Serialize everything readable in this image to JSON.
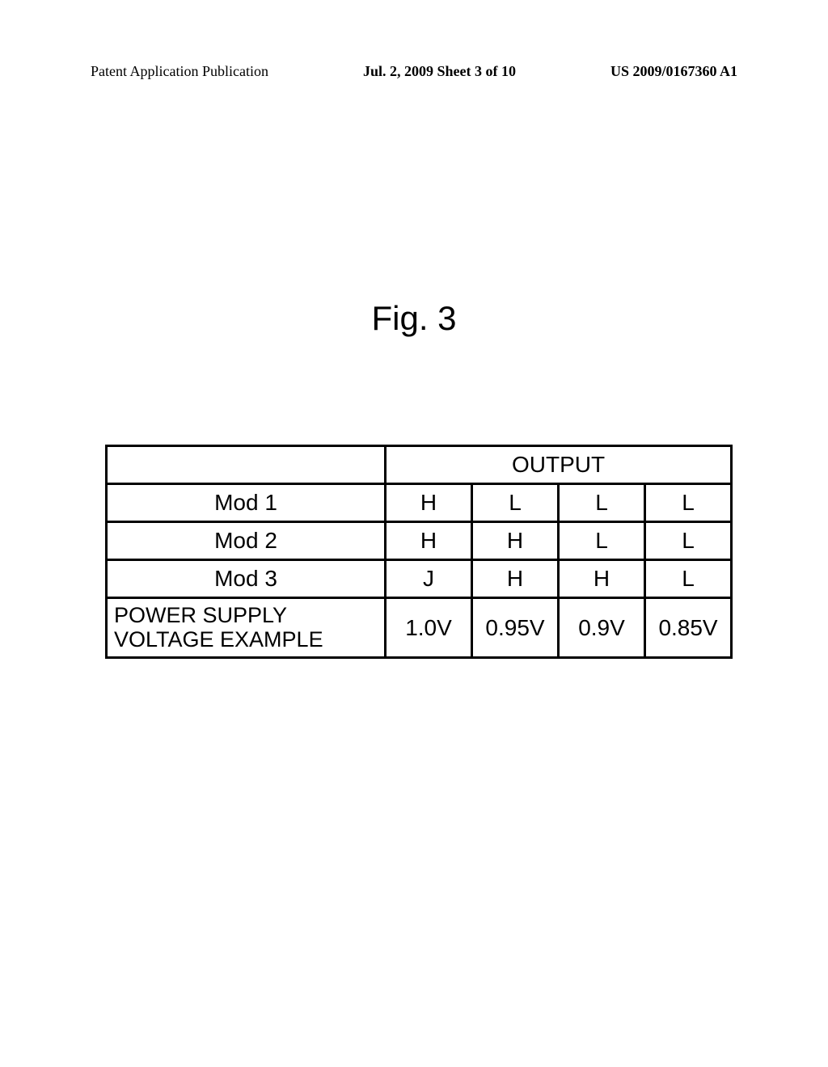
{
  "header": {
    "left": "Patent Application Publication",
    "center": "Jul. 2, 2009  Sheet 3 of 10",
    "right": "US 2009/0167360 A1"
  },
  "figure": {
    "title": "Fig. 3"
  },
  "table": {
    "type": "table",
    "output_header": "OUTPUT",
    "columns_label_width": 345,
    "columns_data_width": 107,
    "border_color": "#000000",
    "background_color": "#ffffff",
    "font_family": "Arial",
    "cell_fontsize": 28,
    "power_label_fontsize": 27,
    "rows": [
      {
        "label": "Mod 1",
        "values": [
          "H",
          "L",
          "L",
          "L"
        ]
      },
      {
        "label": "Mod 2",
        "values": [
          "H",
          "H",
          "L",
          "L"
        ]
      },
      {
        "label": "Mod 3",
        "values": [
          "J",
          "H",
          "H",
          "L"
        ]
      }
    ],
    "power_row": {
      "label_line1": "POWER SUPPLY",
      "label_line2": "VOLTAGE EXAMPLE",
      "values": [
        "1.0V",
        "0.95V",
        "0.9V",
        "0.85V"
      ]
    }
  }
}
